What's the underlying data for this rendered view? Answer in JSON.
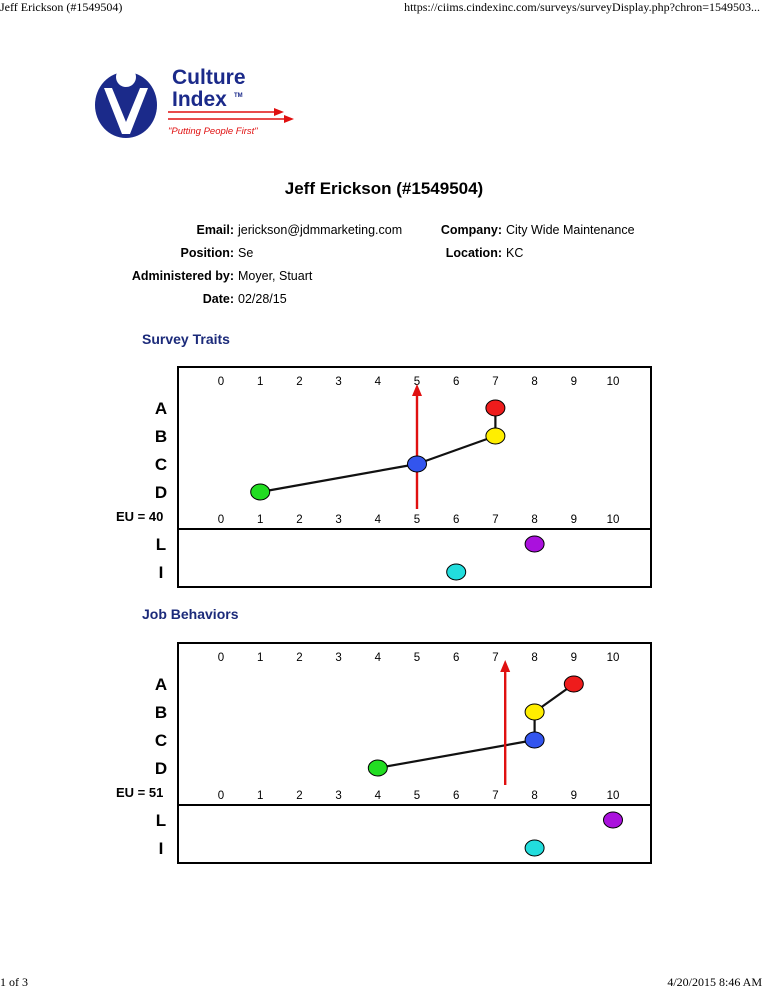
{
  "browser": {
    "tab_title": "Jeff Erickson (#1549504)",
    "url": "https://ciims.cindexinc.com/surveys/surveyDisplay.php?chron=1549503...",
    "page_indicator": "1 of 3",
    "timestamp": "4/20/2015 8:46 AM"
  },
  "logo": {
    "line1": "Culture",
    "line2": "Index",
    "tm": "TM",
    "tagline": "\"Putting People First\""
  },
  "title": "Jeff Erickson (#1549504)",
  "info": {
    "email_label": "Email:",
    "email_value": "jerickson@jdmmarketing.com",
    "company_label": "Company:",
    "company_value": "City Wide Maintenance",
    "position_label": "Position:",
    "position_value": "Se",
    "location_label": "Location:",
    "location_value": "KC",
    "administered_label": "Administered by:",
    "administered_value": "Moyer, Stuart",
    "date_label": "Date:",
    "date_value": "02/28/15"
  },
  "colors": {
    "A": "#ee1c1c",
    "B": "#ffee00",
    "C": "#3355ee",
    "D": "#22dd22",
    "L": "#aa11dd",
    "I": "#22dddd",
    "arrow": "#e01010",
    "section": "#1b2a7a"
  },
  "chart_data": [
    {
      "type": "scatter",
      "title": "Survey Traits",
      "eu_label": "EU = 40",
      "scale": [
        0,
        1,
        2,
        3,
        4,
        5,
        6,
        7,
        8,
        9,
        10
      ],
      "rows": [
        "A",
        "B",
        "C",
        "D"
      ],
      "lower_rows": [
        "L",
        "I"
      ],
      "values": {
        "A": 7,
        "B": 7,
        "C": 5,
        "D": 1,
        "L": 8,
        "I": 6
      },
      "arrow": 5
    },
    {
      "type": "scatter",
      "title": "Job Behaviors",
      "eu_label": "EU = 51",
      "scale": [
        0,
        1,
        2,
        3,
        4,
        5,
        6,
        7,
        8,
        9,
        10
      ],
      "rows": [
        "A",
        "B",
        "C",
        "D"
      ],
      "lower_rows": [
        "L",
        "I"
      ],
      "values": {
        "A": 9,
        "B": 8,
        "C": 8,
        "D": 4,
        "L": 10,
        "I": 8
      },
      "arrow": 7.25
    }
  ]
}
